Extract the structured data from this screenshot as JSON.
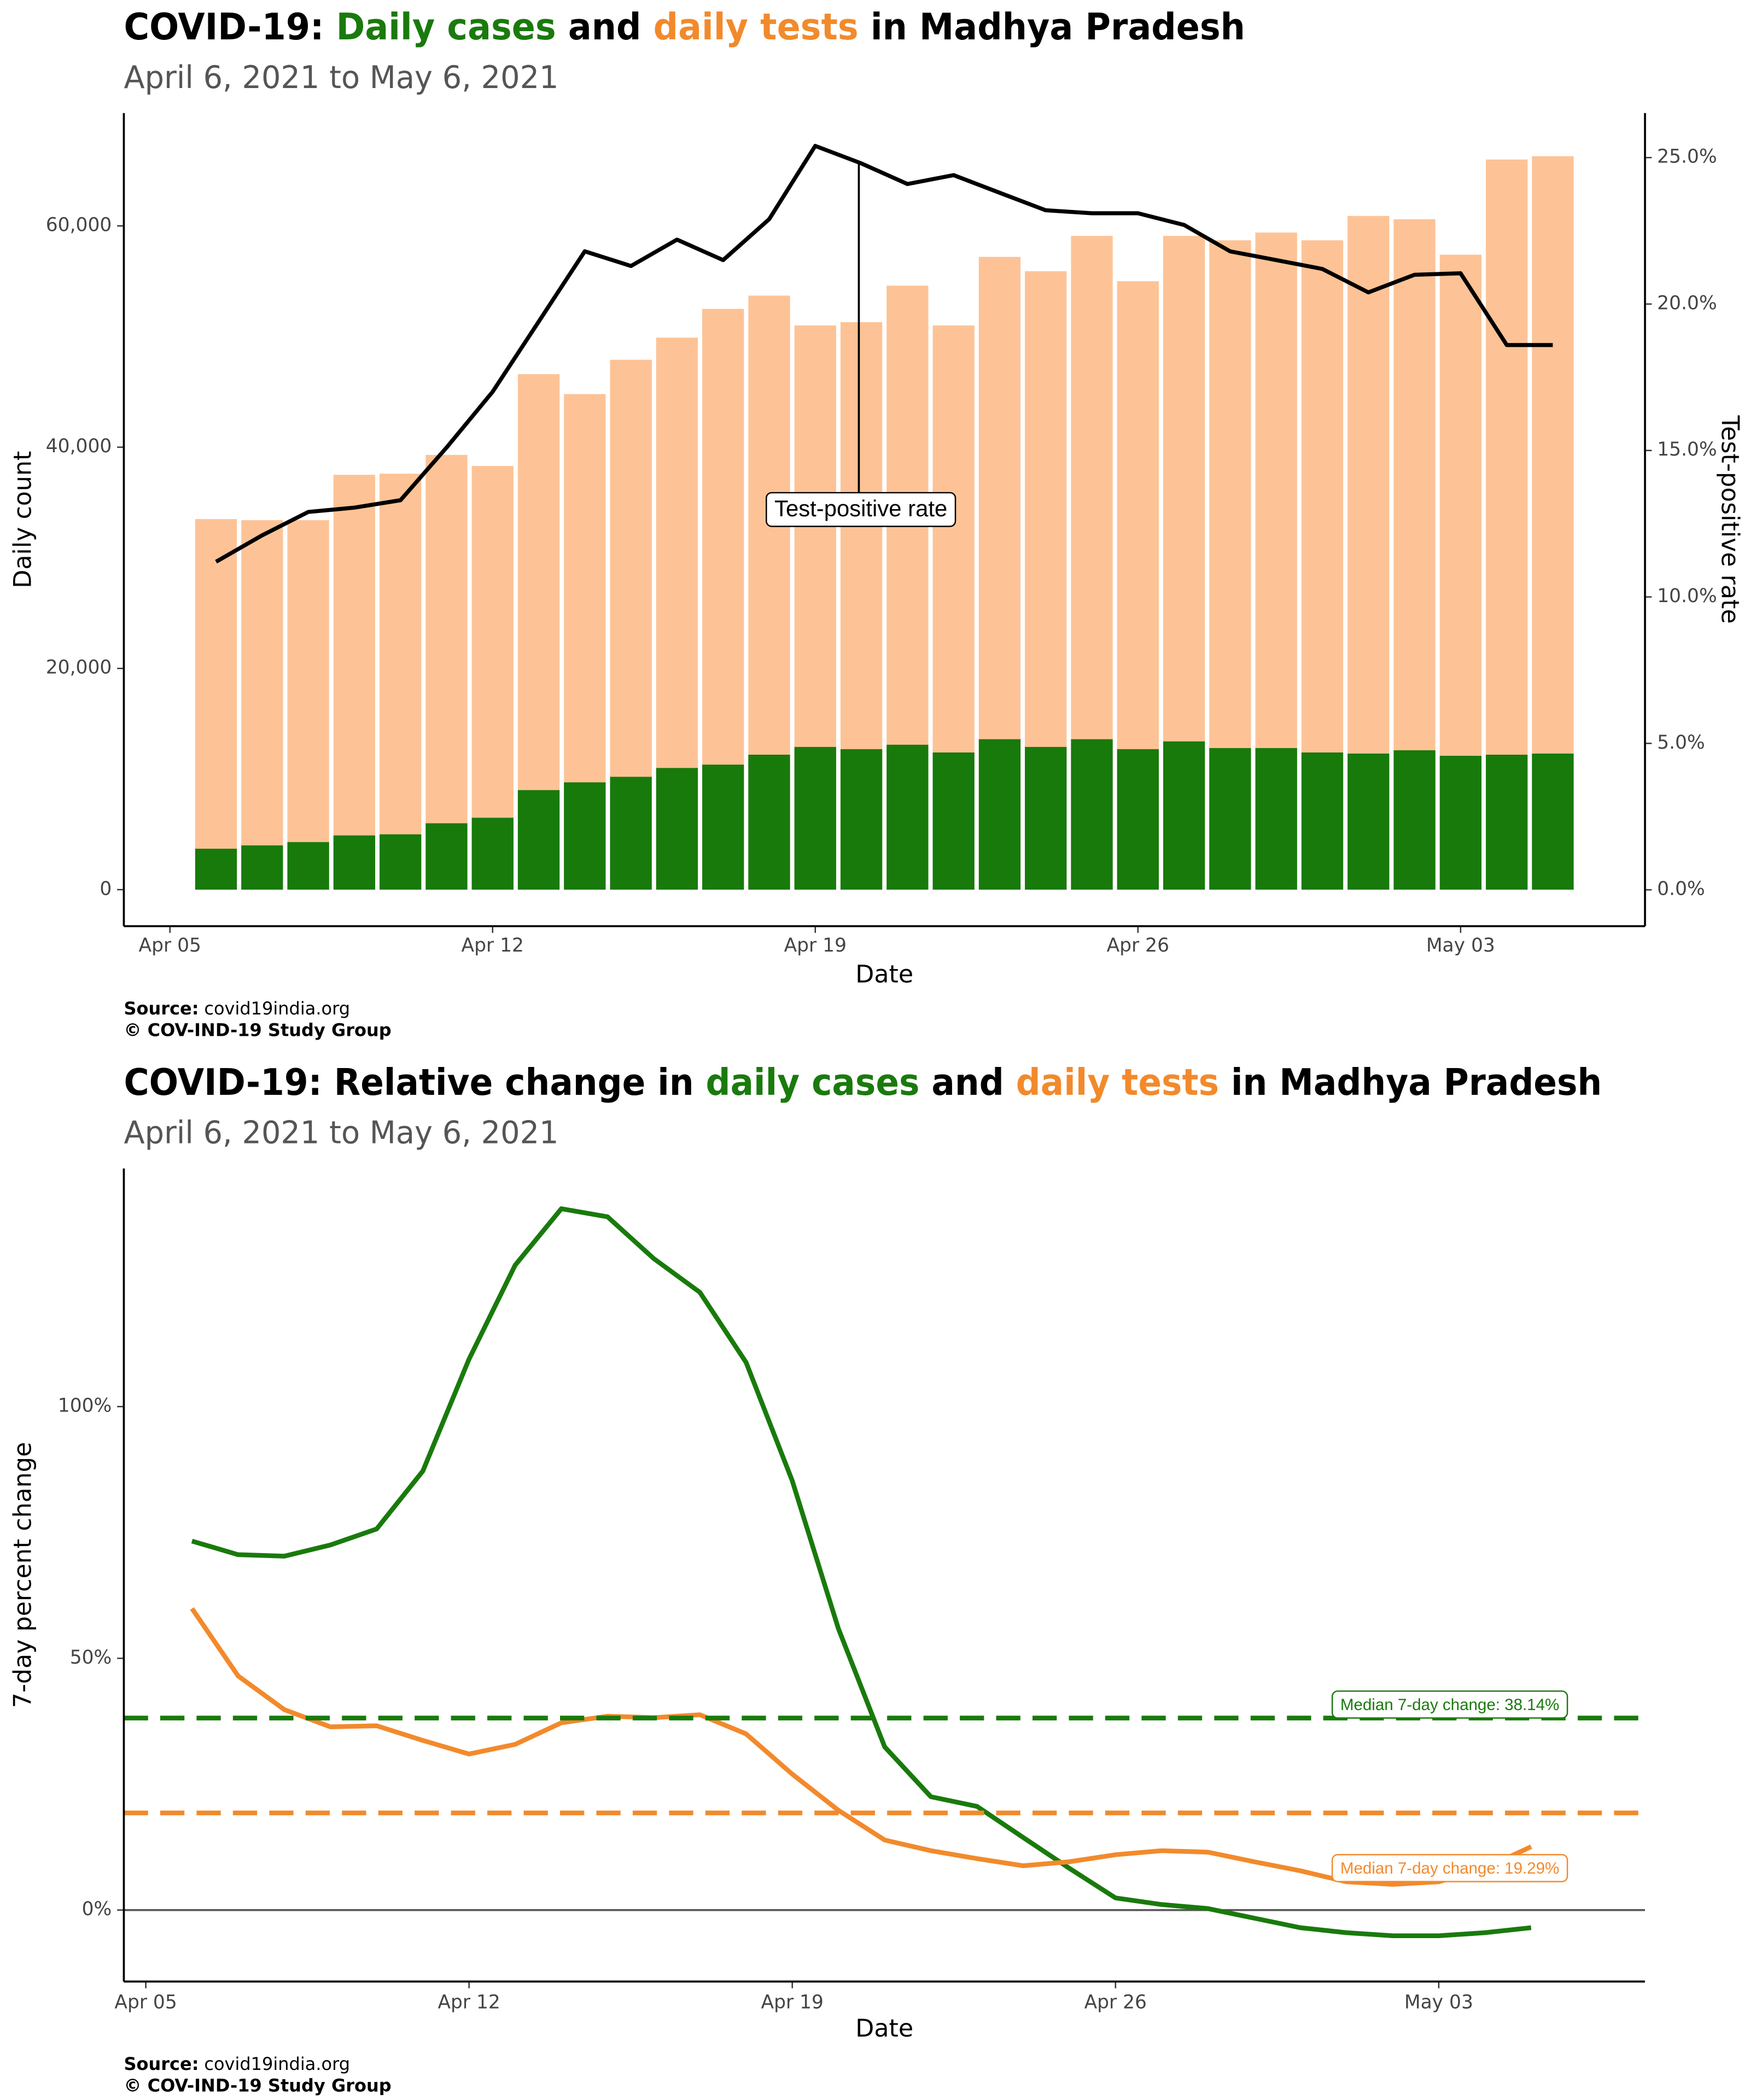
{
  "chart_data": [
    {
      "type": "bar",
      "title_parts": [
        {
          "text": "COVID-19: ",
          "color": "#000000"
        },
        {
          "text": "Daily cases",
          "color": "#1a7a0d"
        },
        {
          "text": " and ",
          "color": "#000000"
        },
        {
          "text": "daily tests",
          "color": "#f28a2c"
        },
        {
          "text": " in Madhya Pradesh",
          "color": "#000000"
        }
      ],
      "subtitle": "April  6, 2021 to May  6, 2021",
      "x_label": "Date",
      "y_label": "Daily count",
      "y2_label": "Test-positive rate",
      "annotation": "Test-positive rate",
      "caption": {
        "source_label": "Source:",
        "source": "covid19india.org",
        "credit": "© COV-IND-19 Study Group"
      },
      "categories": [
        "Apr 06",
        "Apr 07",
        "Apr 08",
        "Apr 09",
        "Apr 10",
        "Apr 11",
        "Apr 12",
        "Apr 13",
        "Apr 14",
        "Apr 15",
        "Apr 16",
        "Apr 17",
        "Apr 18",
        "Apr 19",
        "Apr 20",
        "Apr 21",
        "Apr 22",
        "Apr 23",
        "Apr 24",
        "Apr 25",
        "Apr 26",
        "Apr 27",
        "Apr 28",
        "Apr 29",
        "Apr 30",
        "May 01",
        "May 02",
        "May 03",
        "May 04",
        "May 05"
      ],
      "series": [
        {
          "color": "#fdc396",
          "values": [
            33500,
            33400,
            33400,
            37500,
            37600,
            39300,
            38300,
            46600,
            44800,
            47900,
            49900,
            52500,
            53700,
            51000,
            51300,
            54600,
            51000,
            57200,
            55900,
            59100,
            55000,
            59100,
            58700,
            59400,
            58700,
            60900,
            60600,
            57400,
            66000,
            66300
          ]
        },
        {
          "color": "#177a0b",
          "values": [
            3700,
            4000,
            4300,
            4900,
            5000,
            6000,
            6500,
            9000,
            9700,
            10200,
            11000,
            11300,
            12200,
            12900,
            12700,
            13100,
            12400,
            13600,
            12900,
            13600,
            12700,
            13400,
            12800,
            12800,
            12400,
            12300,
            12600,
            12100,
            12200,
            12300
          ]
        },
        {
          "color": "#000000",
          "axis": "y2",
          "values": [
            11.2,
            12.1,
            12.9,
            13.05,
            13.3,
            15.1,
            17.0,
            19.4,
            21.8,
            21.3,
            22.2,
            21.5,
            22.9,
            25.4,
            24.8,
            24.1,
            24.4,
            23.8,
            23.2,
            23.1,
            23.1,
            22.7,
            21.8,
            21.5,
            21.2,
            20.4,
            21.0,
            21.05,
            18.6,
            18.6
          ]
        }
      ],
      "xlim": [
        "Apr 04",
        "May 07"
      ],
      "xticks": [
        "Apr 05",
        "Apr 12",
        "Apr 19",
        "Apr 26",
        "May 03"
      ],
      "ylim": [
        -3300,
        70200
      ],
      "yticks": [
        0,
        {
          "value": 20000,
          "label": "20,000"
        },
        {
          "value": 40000,
          "label": "40,000"
        },
        {
          "value": 60000,
          "label": "60,000"
        }
      ],
      "y2lim": [
        -1.24,
        26.52
      ],
      "y2ticks": [
        {
          "value": 0,
          "label": "0.0%"
        },
        {
          "value": 5,
          "label": "5.0%"
        },
        {
          "value": 10,
          "label": "10.0%"
        },
        {
          "value": 15,
          "label": "15.0%"
        },
        {
          "value": 20,
          "label": "20.0%"
        },
        {
          "value": 25,
          "label": "25.0%"
        }
      ]
    },
    {
      "type": "line",
      "title_parts": [
        {
          "text": "COVID-19: Relative change in ",
          "color": "#000000"
        },
        {
          "text": "daily cases",
          "color": "#1a7a0d"
        },
        {
          "text": " and ",
          "color": "#000000"
        },
        {
          "text": "daily tests",
          "color": "#f28a2c"
        },
        {
          "text": " in Madhya Pradesh",
          "color": "#000000"
        }
      ],
      "subtitle": "April  6, 2021 to May  6, 2021",
      "x_label": "Date",
      "y_label": "7-day percent change",
      "caption": {
        "source_label": "Source:",
        "source": "covid19india.org",
        "credit": "© COV-IND-19 Study Group"
      },
      "categories": [
        "Apr 06",
        "Apr 07",
        "Apr 08",
        "Apr 09",
        "Apr 10",
        "Apr 11",
        "Apr 12",
        "Apr 13",
        "Apr 14",
        "Apr 15",
        "Apr 16",
        "Apr 17",
        "Apr 18",
        "Apr 19",
        "Apr 20",
        "Apr 21",
        "Apr 22",
        "Apr 23",
        "Apr 24",
        "Apr 25",
        "Apr 26",
        "Apr 27",
        "Apr 28",
        "Apr 29",
        "Apr 30",
        "May 01",
        "May 02",
        "May 03",
        "May 04",
        "May 05"
      ],
      "series": [
        {
          "color": "#197a0c",
          "values": [
            73.3,
            70.6,
            70.3,
            72.5,
            75.7,
            87.2,
            109.4,
            128.1,
            139.3,
            137.7,
            129.4,
            122.7,
            108.8,
            85.3,
            55.9,
            32.4,
            22.5,
            20.6,
            14.4,
            8.3,
            2.4,
            1.1,
            0.3,
            -1.6,
            -3.5,
            -4.5,
            -5.1,
            -5.1,
            -4.5,
            -3.5
          ]
        },
        {
          "color": "#f28a2c",
          "values": [
            59.9,
            46.5,
            39.8,
            36.4,
            36.6,
            33.7,
            31.0,
            32.9,
            37.2,
            38.5,
            38.2,
            38.8,
            35.0,
            27.0,
            19.8,
            13.9,
            11.8,
            10.2,
            8.8,
            9.6,
            11.0,
            11.8,
            11.5,
            9.6,
            7.8,
            5.6,
            5.1,
            5.6,
            8.3,
            12.6
          ]
        }
      ],
      "hlines": [
        {
          "value": 38.14,
          "color": "#197a0c",
          "label": "Median 7-day change: 38.14%"
        },
        {
          "value": 19.29,
          "color": "#f28a2c",
          "label": "Median 7-day change: 19.29%"
        }
      ],
      "xlim": [
        "Apr 04",
        "May 07"
      ],
      "xticks": [
        "Apr 05",
        "Apr 12",
        "Apr 19",
        "Apr 26",
        "May 03"
      ],
      "ylim": [
        -14.2,
        147.3
      ],
      "yticks": [
        {
          "value": 0,
          "label": "0%"
        },
        {
          "value": 50,
          "label": "50%"
        },
        {
          "value": 100,
          "label": "100%"
        }
      ]
    }
  ]
}
